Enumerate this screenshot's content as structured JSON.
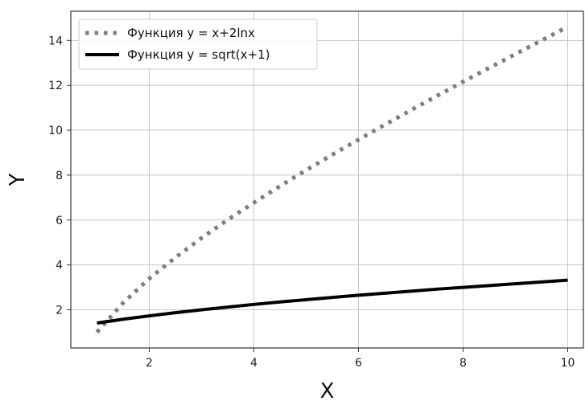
{
  "chart_data": {
    "type": "line",
    "xlabel": "X",
    "ylabel": "Y",
    "xlim": [
      0.5,
      10.3
    ],
    "ylim": [
      0.3,
      15.3
    ],
    "xticks": [
      2,
      4,
      6,
      8,
      10
    ],
    "yticks": [
      2,
      4,
      6,
      8,
      10,
      12,
      14
    ],
    "grid": true,
    "legend_position": "top-left",
    "series": [
      {
        "name": "Функция y = x+2lnx",
        "style": "dotted",
        "color": "#7f7f7f",
        "x": [
          1,
          1.5,
          2,
          2.5,
          3,
          3.5,
          4,
          4.5,
          5,
          5.5,
          6,
          6.5,
          7,
          7.5,
          8,
          8.5,
          9,
          9.5,
          10
        ],
        "y": [
          1.0,
          2.31,
          3.39,
          4.33,
          5.2,
          6.01,
          6.77,
          7.51,
          8.22,
          8.91,
          9.58,
          10.24,
          10.89,
          11.53,
          12.16,
          12.78,
          13.39,
          14.0,
          14.61
        ]
      },
      {
        "name": "Функция y = sqrt(x+1)",
        "style": "solid",
        "color": "#000000",
        "x": [
          1,
          1.5,
          2,
          2.5,
          3,
          3.5,
          4,
          4.5,
          5,
          5.5,
          6,
          6.5,
          7,
          7.5,
          8,
          8.5,
          9,
          9.5,
          10
        ],
        "y": [
          1.41,
          1.58,
          1.73,
          1.87,
          2.0,
          2.12,
          2.24,
          2.35,
          2.45,
          2.55,
          2.65,
          2.74,
          2.83,
          2.92,
          3.0,
          3.08,
          3.16,
          3.24,
          3.32
        ]
      }
    ]
  }
}
